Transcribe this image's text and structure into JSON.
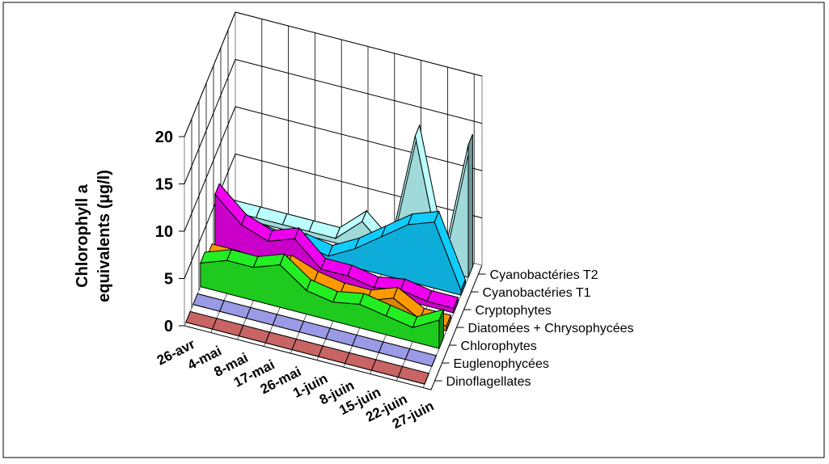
{
  "chart_data": {
    "type": "area",
    "ylabel": "Chlorophyll a equivalents (µg/l)",
    "ylabel_lines": [
      "Chlorophyll a",
      "equivalents (µg/l)"
    ],
    "ylim": [
      0,
      20
    ],
    "yticks": [
      0,
      5,
      10,
      15,
      20
    ],
    "grid": true,
    "categories": [
      "26-avr",
      "4-mai",
      "8-mai",
      "17-mai",
      "26-mai",
      "1-juin",
      "8-juin",
      "15-juin",
      "22-juin",
      "27-juin"
    ],
    "series": [
      {
        "name": "Dinoflagellates",
        "color": "#c86464",
        "values": [
          0,
          0,
          0,
          0,
          0,
          0,
          0,
          0,
          0,
          0
        ]
      },
      {
        "name": "Euglenophycées",
        "color": "#9a9ae6",
        "values": [
          0,
          0,
          0,
          0,
          0,
          0,
          0,
          0,
          0,
          0
        ]
      },
      {
        "name": "Chlorophytes",
        "color": "#22ee22",
        "values": [
          2.5,
          3.5,
          3.5,
          4.5,
          2.5,
          2.0,
          2.5,
          2.0,
          1.5,
          3.0
        ]
      },
      {
        "name": "Diatomées + Chrysophycées",
        "color": "#ff9900",
        "values": [
          1.5,
          1.5,
          1.0,
          2.5,
          1.5,
          1.0,
          1.0,
          2.0,
          0.5,
          0.5
        ]
      },
      {
        "name": "Cryptophytes",
        "color": "#ee00ee",
        "values": [
          6.0,
          3.5,
          2.5,
          3.5,
          1.0,
          1.0,
          0.5,
          1.0,
          0.5,
          0.5
        ]
      },
      {
        "name": "Cyanobactéries T1",
        "color": "#11ccff",
        "values": [
          0.5,
          1.0,
          0.5,
          1.0,
          0.5,
          2.0,
          4.0,
          6.0,
          7.0,
          0.5
        ]
      },
      {
        "name": "Cyanobactéries T2",
        "color": "#bbffff",
        "values": [
          0.5,
          0.5,
          0.5,
          0.5,
          0.5,
          3.0,
          0.5,
          13.5,
          0.5,
          14.0
        ]
      }
    ]
  }
}
